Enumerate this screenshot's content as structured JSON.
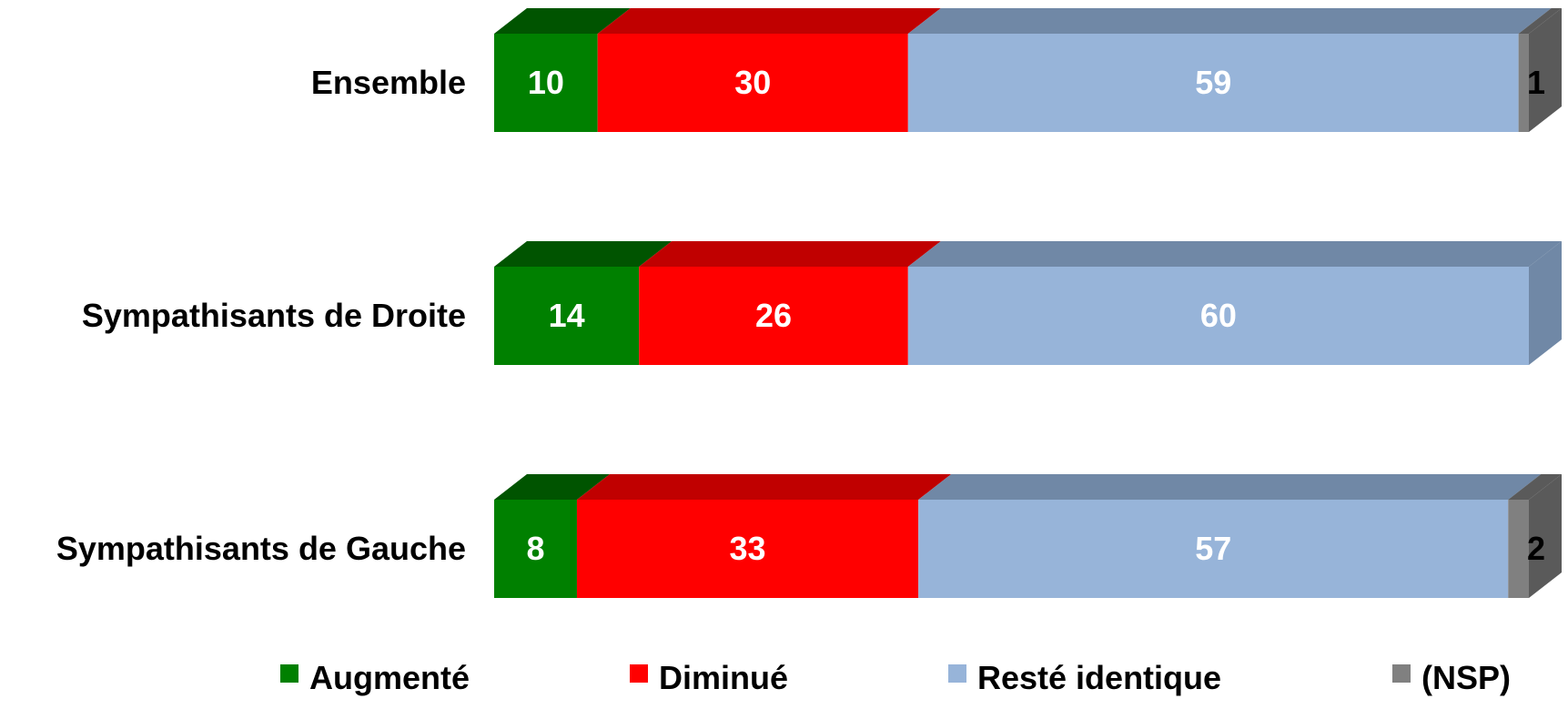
{
  "chart_data": {
    "type": "bar",
    "orientation": "horizontal",
    "stacked": true,
    "style": "3d",
    "categories": [
      "Ensemble",
      "Sympathisants de Droite",
      "Sympathisants de Gauche"
    ],
    "series": [
      {
        "name": "Augmenté",
        "values": [
          10,
          14,
          8
        ],
        "color": "#008000",
        "top_color": "#005400",
        "label_color": "#ffffff"
      },
      {
        "name": "Diminué",
        "values": [
          30,
          26,
          33
        ],
        "color": "#ff0000",
        "top_color": "#c00000",
        "label_color": "#ffffff"
      },
      {
        "name": "Resté identique",
        "values": [
          59,
          60,
          57
        ],
        "color": "#97b4d9",
        "top_color": "#7088a6",
        "label_color": "#ffffff"
      },
      {
        "name": "(NSP)",
        "values": [
          1,
          null,
          2
        ],
        "color": "#808080",
        "top_color": "#5a5a5a",
        "label_color": "#000000"
      }
    ],
    "data_labels": [
      [
        "10",
        "30",
        "59",
        "1"
      ],
      [
        "14",
        "26",
        "60",
        ""
      ],
      [
        "8",
        "33",
        "57",
        "2"
      ]
    ],
    "xlim": [
      0,
      100
    ],
    "grid": false,
    "legend_position": "bottom"
  }
}
